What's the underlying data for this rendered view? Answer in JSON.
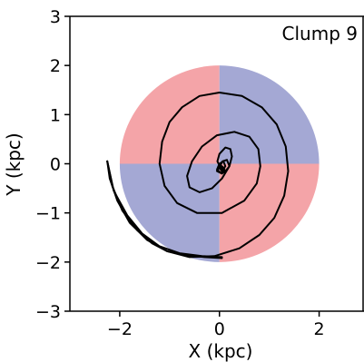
{
  "chart_data": {
    "type": "line",
    "annotation": "Clump 9",
    "xlabel": "X (kpc)",
    "ylabel": "Y (kpc)",
    "xlim": [
      -3,
      2.9
    ],
    "ylim": [
      -3,
      3
    ],
    "xticks": [
      -2,
      0,
      2
    ],
    "yticks": [
      -3,
      -2,
      -1,
      0,
      1,
      2,
      3
    ],
    "tick_labels_x": [
      "−2",
      "0",
      "2"
    ],
    "tick_labels_y": [
      "−3",
      "−2",
      "−1",
      "0",
      "1",
      "2",
      "3"
    ],
    "grid": false,
    "legend": "none",
    "disk": {
      "radius": 2,
      "quadrants": [
        {
          "quadrant": "upper-left",
          "color": "#f4a4a8"
        },
        {
          "quadrant": "upper-right",
          "color": "#a4a8d4"
        },
        {
          "quadrant": "lower-left",
          "color": "#a4a8d4"
        },
        {
          "quadrant": "lower-right",
          "color": "#f4a4a8"
        }
      ]
    },
    "series": [
      {
        "color": "#000000",
        "x": [
          -2.25,
          -2.2,
          -2.05,
          -1.8,
          -1.45,
          -1.05,
          -0.6,
          -0.1,
          0.4,
          0.8,
          1.1,
          1.3,
          1.38,
          1.33,
          1.15,
          0.85,
          0.45,
          0.0,
          -0.4,
          -0.75,
          -1.0,
          -1.15,
          -1.2,
          -1.1,
          -0.85,
          -0.45,
          0.05,
          0.5,
          0.75,
          0.82,
          0.78,
          0.6,
          0.3,
          -0.05,
          -0.35,
          -0.55,
          -0.65,
          -0.6,
          -0.4,
          -0.15,
          0.05,
          0.2,
          0.25,
          0.22,
          0.12,
          0.0,
          -0.04,
          0.03,
          0.12,
          0.2,
          0.15,
          0.06,
          0.0,
          0.05,
          0.12,
          0.08,
          0.0,
          -0.05,
          0.05,
          0.12,
          0.02,
          -0.05,
          0.05,
          0.1,
          0.05
        ],
        "y": [
          0.05,
          -0.3,
          -0.75,
          -1.2,
          -1.55,
          -1.78,
          -1.9,
          -1.88,
          -1.72,
          -1.45,
          -1.1,
          -0.65,
          -0.15,
          0.35,
          0.8,
          1.15,
          1.38,
          1.45,
          1.38,
          1.15,
          0.85,
          0.45,
          0.0,
          -0.45,
          -0.8,
          -1.0,
          -1.0,
          -0.75,
          -0.4,
          -0.05,
          0.3,
          0.55,
          0.65,
          0.58,
          0.35,
          0.05,
          -0.25,
          -0.48,
          -0.58,
          -0.5,
          -0.3,
          -0.05,
          0.15,
          0.3,
          0.33,
          0.2,
          0.05,
          -0.1,
          -0.15,
          -0.05,
          0.08,
          0.05,
          -0.08,
          -0.15,
          -0.05,
          0.05,
          0.0,
          -0.12,
          -0.2,
          -0.15,
          -0.05,
          -0.15,
          -0.2,
          -0.1,
          -0.05
        ]
      },
      {
        "color": "#000000",
        "x": [
          -2.25,
          -2.15,
          -1.95,
          -1.65,
          -1.35,
          -1.05,
          -0.7,
          -0.3,
          0.05
        ],
        "y": [
          0.05,
          -0.45,
          -0.95,
          -1.35,
          -1.62,
          -1.78,
          -1.85,
          -1.9,
          -1.92
        ]
      },
      {
        "color": "#000000",
        "x": [
          -2.25,
          -2.12,
          -1.85,
          -1.55,
          -1.2,
          -0.8,
          -0.35,
          0.05
        ],
        "y": [
          0.05,
          -0.55,
          -1.05,
          -1.42,
          -1.68,
          -1.82,
          -1.88,
          -1.9
        ]
      }
    ]
  }
}
